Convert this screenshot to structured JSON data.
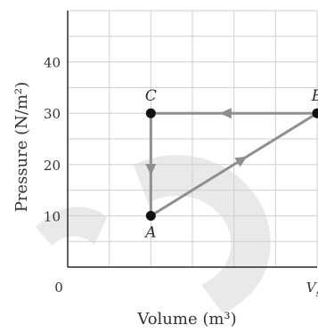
{
  "chart_data": {
    "type": "line",
    "title": "",
    "xlabel": "Volume (m³)",
    "ylabel": "Pressure (N/m²)",
    "xlim": [
      0,
      6
    ],
    "ylim": [
      0,
      50
    ],
    "x_tick_labels": [
      {
        "x": 0,
        "label": "0"
      },
      {
        "x": 6,
        "label": "V",
        "subscript": "s"
      }
    ],
    "y_ticks": [
      10,
      20,
      30,
      40
    ],
    "grid": true,
    "points": [
      {
        "name": "A",
        "x": 2,
        "y": 10,
        "label_position": "below"
      },
      {
        "name": "B",
        "x": 6,
        "y": 30,
        "label_position": "above"
      },
      {
        "name": "C",
        "x": 2,
        "y": 30,
        "label_position": "above"
      }
    ],
    "segments": [
      {
        "from": "A",
        "to": "B"
      },
      {
        "from": "B",
        "to": "C"
      },
      {
        "from": "C",
        "to": "A"
      }
    ],
    "colors": {
      "path": "#8f8f8f",
      "point": "#111111",
      "grid": "#cfcfcf",
      "axis": "#2a2a2a"
    }
  }
}
